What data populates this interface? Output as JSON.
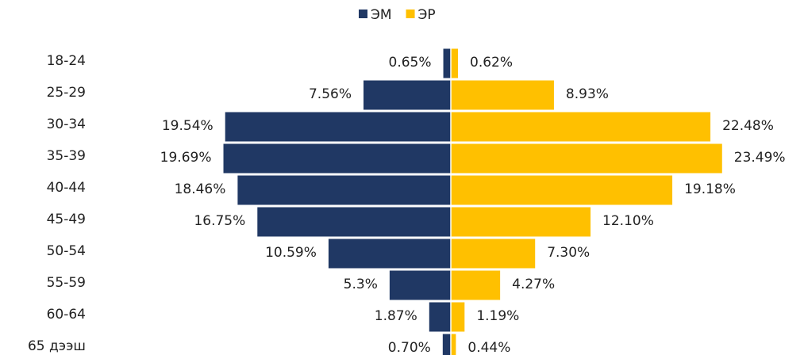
{
  "chart_data": {
    "type": "pyramid",
    "categories": [
      "18-24",
      "25-29",
      "30-34",
      "35-39",
      "40-44",
      "45-49",
      "50-54",
      "55-59",
      "60-64",
      "65 дээш"
    ],
    "series": [
      {
        "name": "ЭМ",
        "color": "#203864",
        "side": "left",
        "values": [
          0.65,
          7.56,
          19.54,
          19.69,
          18.46,
          16.75,
          10.59,
          5.3,
          1.87,
          0.7
        ],
        "value_labels": [
          "0.65%",
          "7.56%",
          "19.54%",
          "19.69%",
          "18.46%",
          "16.75%",
          "10.59%",
          "5.3%",
          "1.87%",
          "0.70%"
        ]
      },
      {
        "name": "ЭР",
        "color": "#ffc000",
        "side": "right",
        "values": [
          0.62,
          8.93,
          22.48,
          23.49,
          19.18,
          12.1,
          7.3,
          4.27,
          1.19,
          0.44
        ],
        "value_labels": [
          "0.62%",
          "8.93%",
          "22.48%",
          "23.49%",
          "19.18%",
          "12.10%",
          "7.30%",
          "4.27%",
          "1.19%",
          "0.44%"
        ]
      }
    ],
    "legend": "top"
  }
}
